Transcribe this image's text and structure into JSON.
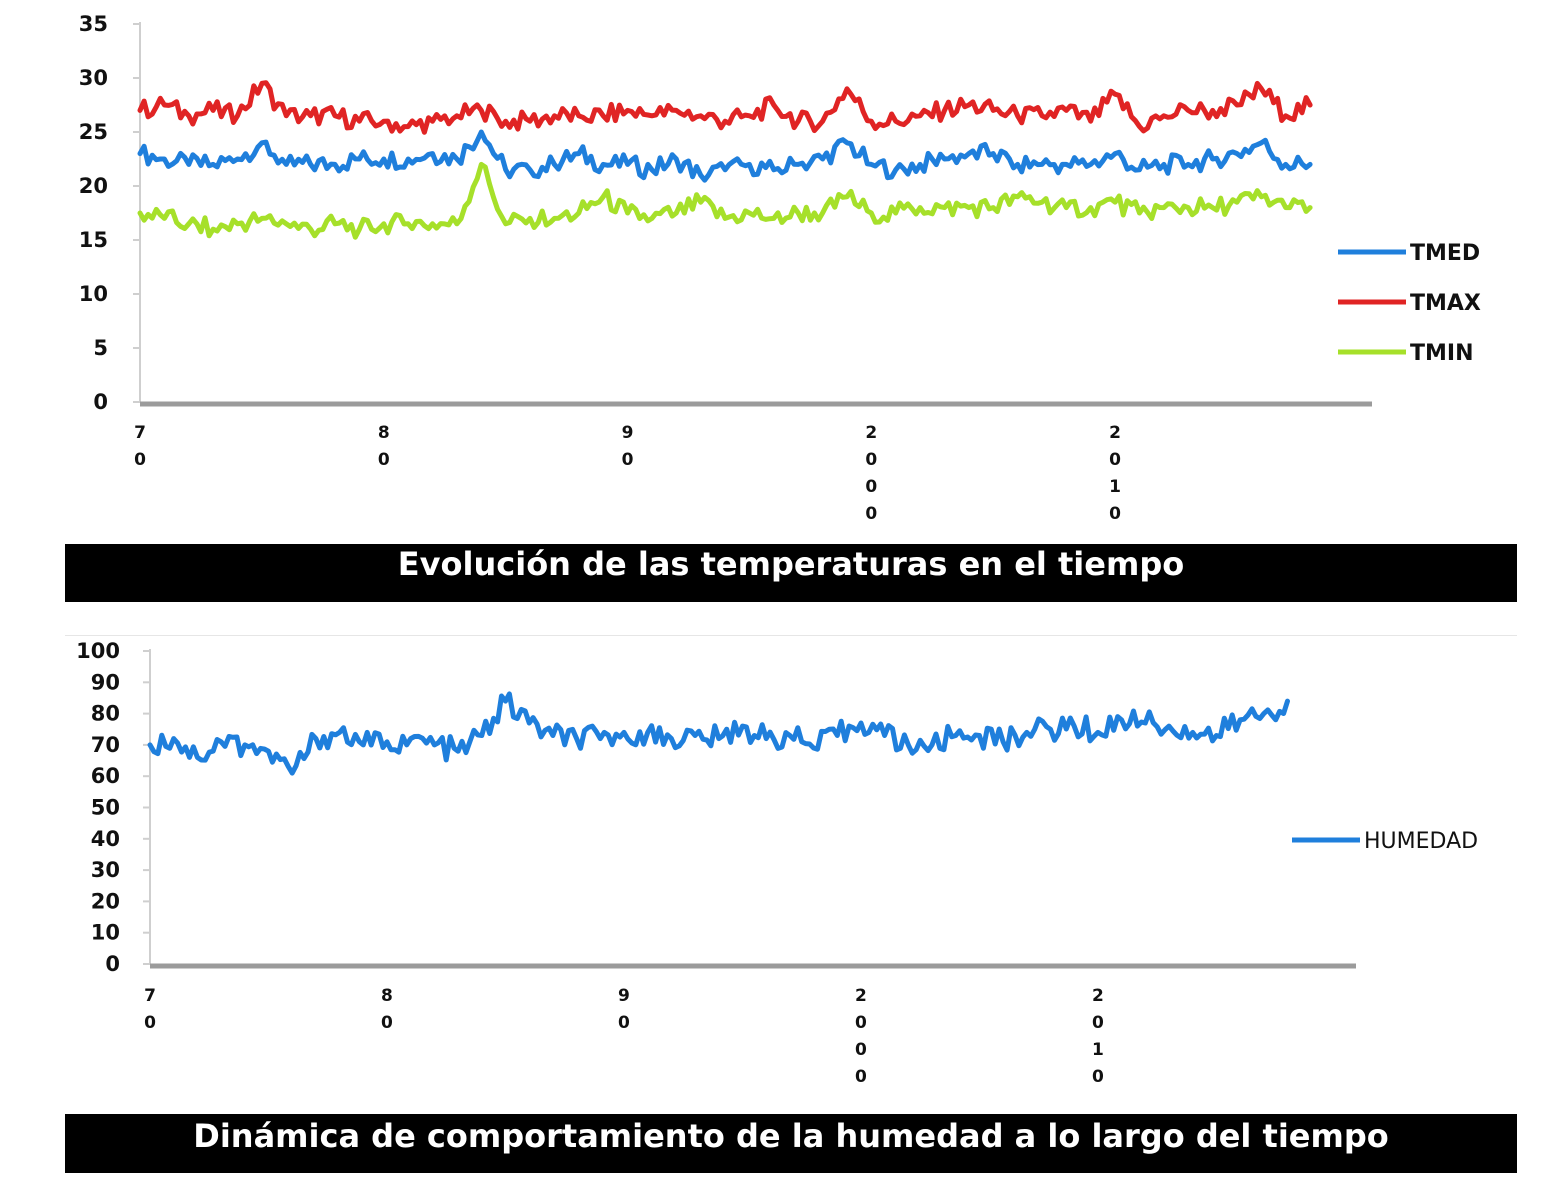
{
  "chart_data": [
    {
      "type": "line",
      "title": "Evolución de las temperaturas en el tiempo",
      "xlabel": "",
      "ylabel": "",
      "ylim": [
        0,
        35
      ],
      "yticks": [
        "0",
        "5",
        "10",
        "15",
        "20",
        "25",
        "30",
        "35"
      ],
      "xticks": [
        {
          "label": "70",
          "year": 1970
        },
        {
          "label": "80",
          "year": 1980
        },
        {
          "label": "90",
          "year": 1990
        },
        {
          "label": "2000",
          "year": 2000
        },
        {
          "label": "2010",
          "year": 2010
        }
      ],
      "xlim": [
        1970,
        2018.2
      ],
      "grid": false,
      "legend_position": "right",
      "series": [
        {
          "name": "TMED",
          "color": "#1f7fdc",
          "x": [
            1970,
            1971,
            1972,
            1973,
            1974,
            1975,
            1976,
            1977,
            1978,
            1979,
            1980,
            1981,
            1982,
            1983,
            1984,
            1985,
            1986,
            1987,
            1988,
            1989,
            1990,
            1991,
            1992,
            1993,
            1994,
            1995,
            1996,
            1997,
            1998,
            1999,
            2000,
            2001,
            2002,
            2003,
            2004,
            2005,
            2006,
            2007,
            2008,
            2009,
            2010,
            2011,
            2012,
            2013,
            2014,
            2015,
            2016,
            2017,
            2018
          ],
          "values": [
            23,
            22.5,
            22,
            22,
            22.5,
            24,
            22,
            22,
            22,
            22.5,
            22.5,
            22.5,
            23,
            22.5,
            25,
            21.5,
            21.5,
            22,
            23,
            22,
            22,
            21.5,
            22.5,
            21,
            21.5,
            22,
            21.5,
            22,
            22.5,
            24,
            22,
            21.5,
            22,
            22.5,
            23,
            23,
            22,
            22,
            22,
            22,
            23,
            21.5,
            22,
            22,
            22.5,
            23,
            24,
            22,
            22
          ]
        },
        {
          "name": "TMAX",
          "color": "#e02424",
          "x": [
            1970,
            1971,
            1972,
            1973,
            1974,
            1975,
            1976,
            1977,
            1978,
            1979,
            1980,
            1981,
            1982,
            1983,
            1984,
            1985,
            1986,
            1987,
            1988,
            1989,
            1990,
            1991,
            1992,
            1993,
            1994,
            1995,
            1996,
            1997,
            1998,
            1999,
            2000,
            2001,
            2002,
            2003,
            2004,
            2005,
            2006,
            2007,
            2008,
            2009,
            2010,
            2011,
            2012,
            2013,
            2014,
            2015,
            2016,
            2017,
            2018
          ],
          "values": [
            27,
            27.5,
            26.5,
            27,
            26.5,
            29.5,
            26.5,
            26.5,
            26.5,
            26,
            26,
            25.5,
            26,
            26.5,
            27,
            26,
            26,
            26.5,
            26.5,
            26.5,
            27,
            26.5,
            27,
            26.5,
            26,
            26.5,
            27.5,
            26,
            26,
            29,
            26,
            26,
            26.5,
            27,
            27.5,
            27,
            26.5,
            26.5,
            27,
            26,
            28.5,
            25.5,
            26.5,
            27,
            27,
            27.5,
            29,
            26.5,
            27.5
          ]
        },
        {
          "name": "TMIN",
          "color": "#a6e02a",
          "x": [
            1970,
            1971,
            1972,
            1973,
            1974,
            1975,
            1976,
            1977,
            1978,
            1979,
            1980,
            1981,
            1982,
            1983,
            1984,
            1985,
            1986,
            1987,
            1988,
            1989,
            1990,
            1991,
            1992,
            1993,
            1994,
            1995,
            1996,
            1997,
            1998,
            1999,
            2000,
            2001,
            2002,
            2003,
            2004,
            2005,
            2006,
            2007,
            2008,
            2009,
            2010,
            2011,
            2012,
            2013,
            2014,
            2015,
            2016,
            2017,
            2018
          ],
          "values": [
            17.5,
            17,
            16.5,
            16,
            16.5,
            17,
            16.5,
            16,
            16.5,
            16,
            16.5,
            16.5,
            16.5,
            16.5,
            22,
            16.5,
            17,
            17,
            17.5,
            19,
            17.5,
            17,
            17.5,
            18.5,
            17,
            17.5,
            17,
            17.5,
            17.5,
            19,
            17.5,
            17.5,
            18,
            18,
            18,
            18,
            19,
            18.5,
            18,
            18,
            18.5,
            17.5,
            18,
            18,
            18,
            18.5,
            19,
            18,
            18
          ]
        }
      ]
    },
    {
      "type": "line",
      "title": "Dinámica de comportamiento de la humedad a lo largo del tiempo",
      "xlabel": "",
      "ylabel": "",
      "ylim": [
        0,
        100
      ],
      "yticks": [
        "0",
        "10",
        "20",
        "30",
        "40",
        "50",
        "60",
        "70",
        "80",
        "90",
        "100"
      ],
      "xticks": [
        {
          "label": "70",
          "year": 1970
        },
        {
          "label": "80",
          "year": 1980
        },
        {
          "label": "90",
          "year": 1990
        },
        {
          "label": "2000",
          "year": 2000
        },
        {
          "label": "2010",
          "year": 2010
        }
      ],
      "xlim": [
        1970,
        2018.4
      ],
      "grid": false,
      "legend_position": "right",
      "series": [
        {
          "name": "HUMEDAD",
          "color": "#1f7fdc",
          "x": [
            1970,
            1971,
            1972,
            1973,
            1974,
            1975,
            1976,
            1977,
            1978,
            1979,
            1980,
            1981,
            1982,
            1983,
            1984,
            1985,
            1986,
            1987,
            1988,
            1989,
            1990,
            1991,
            1992,
            1993,
            1994,
            1995,
            1996,
            1997,
            1998,
            1999,
            2000,
            2001,
            2002,
            2003,
            2004,
            2005,
            2006,
            2007,
            2008,
            2009,
            2010,
            2011,
            2012,
            2013,
            2014,
            2015,
            2016,
            2017,
            2018
          ],
          "values": [
            70,
            72,
            66,
            71,
            70,
            68,
            61,
            72,
            74,
            70,
            71,
            72,
            70,
            68,
            73,
            84,
            77,
            73,
            72,
            72,
            74,
            74,
            72,
            73,
            72,
            76,
            72,
            73,
            69,
            73,
            77,
            73,
            70,
            70,
            73,
            73,
            71,
            74,
            75,
            76,
            74,
            78,
            77,
            76,
            74,
            73,
            78,
            80,
            84
          ]
        }
      ]
    }
  ]
}
